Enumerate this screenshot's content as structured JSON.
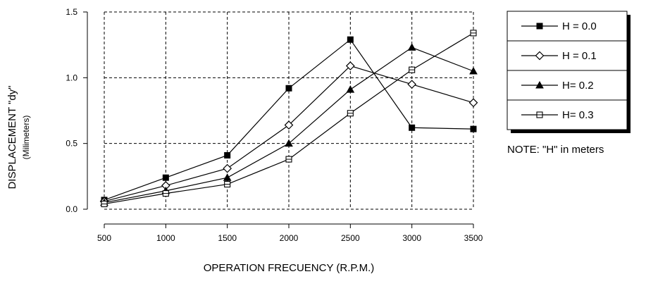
{
  "chart_data": {
    "type": "line",
    "x": [
      500,
      1000,
      1500,
      2000,
      2500,
      3000,
      3500
    ],
    "x_tick_labels": [
      "500",
      "1000",
      "1500",
      "2000",
      "2500",
      "3000",
      "3500"
    ],
    "y_tick_labels": [
      "0.0",
      "0.5",
      "1.0",
      "1.5"
    ],
    "ylim": [
      0.0,
      1.5
    ],
    "xlabel": "OPERATION FRECUENCY  (R.P.M.)",
    "ylabel": "DISPLACEMENT  \"dy\"",
    "ylabel_sub": "(Milimeters)",
    "grid": true,
    "grid_style": "dashed",
    "legend_position": "right",
    "note": "NOTE: \"H\" in meters",
    "series": [
      {
        "name": "H = 0.0",
        "marker": "square-filled",
        "values": [
          0.07,
          0.24,
          0.41,
          0.92,
          1.29,
          0.62,
          0.61
        ]
      },
      {
        "name": "H = 0.1",
        "marker": "diamond-open",
        "values": [
          0.06,
          0.18,
          0.31,
          0.64,
          1.09,
          0.95,
          0.81
        ]
      },
      {
        "name": "H= 0.2",
        "marker": "triangle-filled",
        "values": [
          0.05,
          0.14,
          0.24,
          0.5,
          0.91,
          1.23,
          1.05
        ]
      },
      {
        "name": "H= 0.3",
        "marker": "square-open",
        "values": [
          0.04,
          0.12,
          0.19,
          0.38,
          0.73,
          1.06,
          1.34
        ]
      }
    ]
  }
}
